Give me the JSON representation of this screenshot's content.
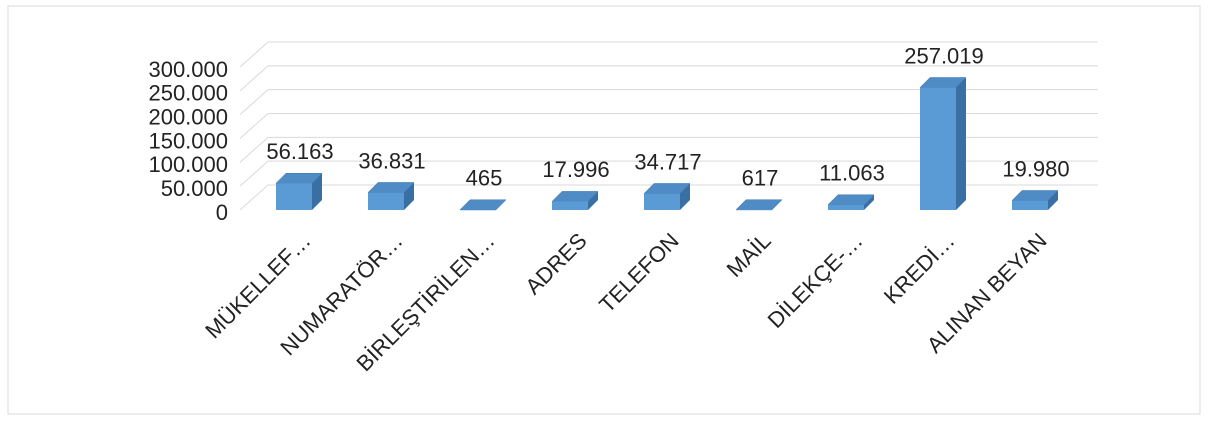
{
  "chart_data": {
    "type": "bar3d",
    "categories": [
      "MÜKELLEF…",
      "NUMARATÖR…",
      "BİRLEŞTİRİLEN…",
      "ADRES",
      "TELEFON",
      "MAİL",
      "DİLEKÇE-…",
      "KREDİ…",
      "ALINAN BEYAN"
    ],
    "values": [
      56163,
      36831,
      465,
      17996,
      34717,
      617,
      11063,
      257019,
      19980
    ],
    "value_labels": [
      "56.163",
      "36.831",
      "465",
      "17.996",
      "34.717",
      "617",
      "11.063",
      "257.019",
      "19.980"
    ],
    "color": "#5b9bd5",
    "ylim": [
      0,
      300000
    ],
    "yticks": [
      0,
      {
        "value": 50000,
        "label": "50.000"
      },
      {
        "value": 100000,
        "label": "100.000"
      },
      {
        "value": 150000,
        "label": "150.000"
      },
      {
        "value": 200000,
        "label": "200.000"
      },
      {
        "value": 250000,
        "label": "250.000"
      },
      {
        "value": 300000,
        "label": "300.000"
      }
    ],
    "grid": true
  }
}
